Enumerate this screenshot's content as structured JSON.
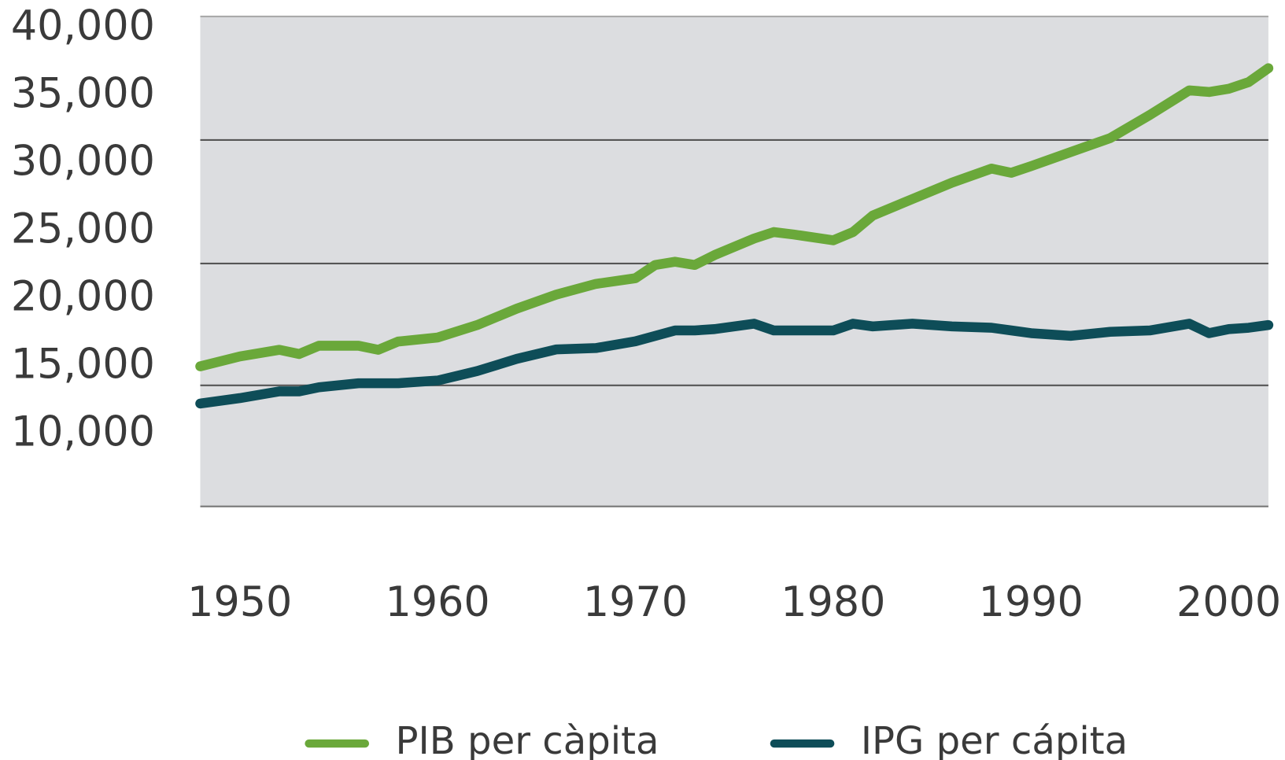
{
  "chart_data": {
    "type": "line",
    "x": [
      1948,
      1950,
      1952,
      1953,
      1954,
      1956,
      1957,
      1958,
      1960,
      1962,
      1964,
      1966,
      1968,
      1970,
      1971,
      1972,
      1973,
      1974,
      1976,
      1977,
      1978,
      1980,
      1981,
      1982,
      1984,
      1986,
      1988,
      1989,
      1990,
      1992,
      1994,
      1996,
      1998,
      1999,
      2000,
      2001,
      2002
    ],
    "series": [
      {
        "name": "PIB per càpita",
        "color": "#6aa83a",
        "values": [
          15050,
          15780,
          16270,
          15960,
          16570,
          16570,
          16270,
          16880,
          17180,
          18100,
          19310,
          20350,
          21140,
          21560,
          22540,
          22780,
          22540,
          23270,
          24490,
          24970,
          24790,
          24360,
          24970,
          26190,
          27410,
          28620,
          29660,
          29350,
          29840,
          30880,
          31910,
          33620,
          35440,
          35320,
          35560,
          36050,
          37080
        ]
      },
      {
        "name": "IPG per cápita",
        "color": "#0e4d58",
        "values": [
          12300,
          12700,
          13200,
          13200,
          13500,
          13800,
          13800,
          13800,
          14000,
          14700,
          15600,
          16300,
          16400,
          16900,
          17300,
          17700,
          17700,
          17800,
          18200,
          17700,
          17700,
          17700,
          18200,
          18000,
          18200,
          18000,
          17900,
          17700,
          17500,
          17300,
          17600,
          17700,
          18200,
          17500,
          17800,
          17900,
          18100
        ]
      }
    ],
    "xlim": [
      1948,
      2002
    ],
    "xticks": [
      1950,
      1960,
      1970,
      1980,
      1990,
      2000
    ],
    "ylim": [
      4700,
      40900
    ],
    "yticks": [
      {
        "value": 10000,
        "label": "10,000"
      },
      {
        "value": 15000,
        "label": "15,000"
      },
      {
        "value": 20000,
        "label": "20,000"
      },
      {
        "value": 25000,
        "label": "25,000"
      },
      {
        "value": 30000,
        "label": "30,000"
      },
      {
        "value": 35000,
        "label": "35,000"
      },
      {
        "value": 40000,
        "label": "40,000"
      }
    ],
    "legend": "bottom"
  }
}
